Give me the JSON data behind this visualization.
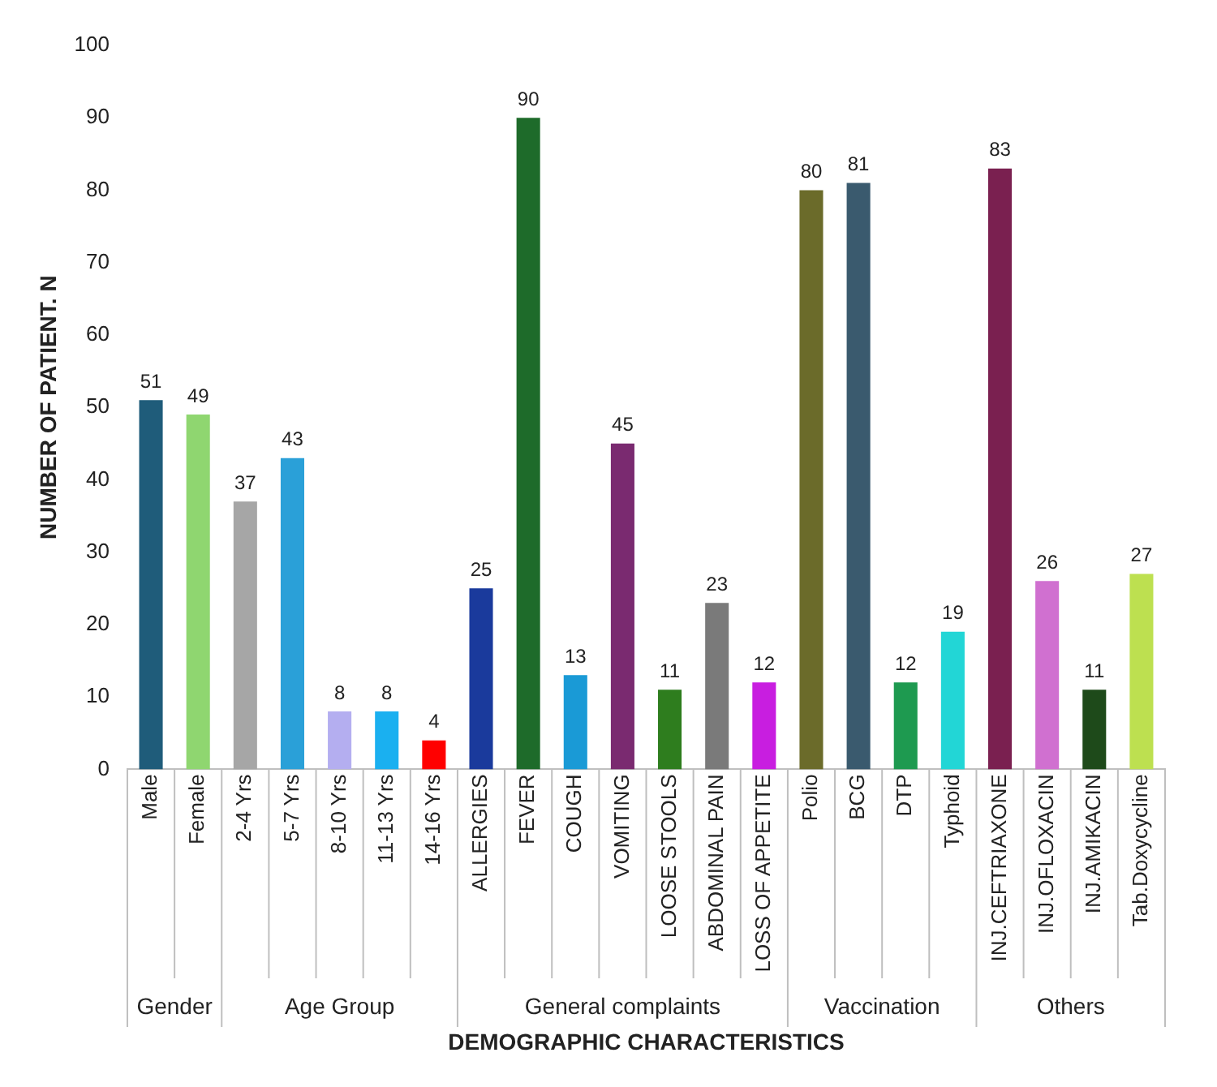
{
  "chart_data": {
    "type": "bar",
    "xlabel": "DEMOGRAPHIC CHARACTERISTICS",
    "ylabel": "NUMBER OF PATIENT. N",
    "categories": [
      "Male",
      "Female",
      "2-4 Yrs",
      "5-7 Yrs",
      "8-10 Yrs",
      "11-13 Yrs",
      "14-16 Yrs",
      "ALLERGIES",
      "FEVER",
      "COUGH",
      "VOMITING",
      "LOOSE STOOLS",
      "ABDOMINAL PAIN",
      "LOSS OF APPETITE",
      "Polio",
      "BCG",
      "DTP",
      "Typhoid",
      "INJ.CEFTRIAXONE",
      "INJ.OFLOXACIN",
      "INJ.AMIKACIN",
      "Tab.Doxycycline"
    ],
    "values": [
      51,
      49,
      37,
      43,
      8,
      8,
      4,
      25,
      90,
      13,
      45,
      11,
      23,
      12,
      80,
      81,
      12,
      19,
      83,
      26,
      11,
      27
    ],
    "colors": [
      "#1f5c7a",
      "#8fd670",
      "#a6a6a6",
      "#2aa0d8",
      "#b4aef0",
      "#1ab0f0",
      "#ff0000",
      "#1a3a9c",
      "#1e6b2a",
      "#1a9ad6",
      "#7a2a70",
      "#2e7d1e",
      "#7a7a7a",
      "#c81ee0",
      "#6b6b2a",
      "#3a5a6e",
      "#1e9a50",
      "#22d6d6",
      "#7a2050",
      "#d070d0",
      "#1e4a1a",
      "#bde050"
    ],
    "ylim": [
      0,
      100
    ],
    "yticks": [
      0,
      10,
      20,
      30,
      40,
      50,
      60,
      70,
      80,
      90,
      100
    ],
    "grid": false,
    "legend": false,
    "data_labels": true,
    "annotations": [
      "Gender",
      "Age Group",
      "General complaints",
      "Vaccination",
      "Others"
    ]
  }
}
